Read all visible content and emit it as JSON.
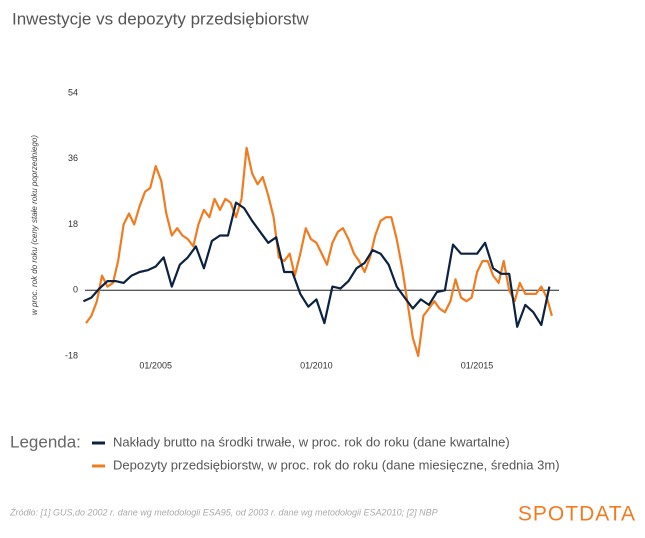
{
  "chart_data": {
    "type": "line",
    "title": "Inwestycje vs depozyty przedsiębiorstw",
    "y_label": "w proc. rok do roku (ceny stałe roku poprzedniego)",
    "legend_title": "Legenda:",
    "source": "Źródło: [1] GUS,do 2002 r. dane wg metodologii ESA95, od 2003 r. dane wg metodologii ESA2010; [2] NBP",
    "logo": "SPOTDATA",
    "xlim": [
      2002.8,
      2017.55
    ],
    "xticks": [
      {
        "value": 2005,
        "label": "01/2005"
      },
      {
        "value": 2010,
        "label": "01/2010"
      },
      {
        "value": 2015,
        "label": "01/2015"
      }
    ],
    "ylim": [
      -18,
      54
    ],
    "yticks": [
      -18,
      0,
      18,
      36,
      54
    ],
    "series": [
      {
        "name": "Nakłady brutto na środki trwałe, w proc. rok do roku (dane kwartalne)",
        "color": "#0d2240",
        "x": [
          2002.75,
          2003,
          2003.25,
          2003.5,
          2003.75,
          2004,
          2004.25,
          2004.5,
          2004.75,
          2005,
          2005.25,
          2005.5,
          2005.75,
          2006,
          2006.25,
          2006.5,
          2006.75,
          2007,
          2007.25,
          2007.5,
          2007.75,
          2008,
          2008.25,
          2008.5,
          2008.75,
          2009,
          2009.25,
          2009.5,
          2009.75,
          2010,
          2010.25,
          2010.5,
          2010.75,
          2011,
          2011.25,
          2011.5,
          2011.75,
          2012,
          2012.25,
          2012.5,
          2012.75,
          2013,
          2013.25,
          2013.5,
          2013.75,
          2014,
          2014.25,
          2014.5,
          2014.75,
          2015,
          2015.25,
          2015.5,
          2015.75,
          2016,
          2016.25,
          2016.5,
          2016.75,
          2017,
          2017.25
        ],
        "values": [
          -3,
          -2,
          0.5,
          2.5,
          2.5,
          2,
          4,
          5,
          5.5,
          6.5,
          9,
          1,
          7,
          9,
          12,
          6,
          13.5,
          15,
          15,
          24,
          22.5,
          19,
          16,
          13,
          14.5,
          5,
          5,
          -1,
          -4.5,
          -2.5,
          -9,
          1,
          0.5,
          2.5,
          6,
          7.5,
          11,
          10,
          7,
          1,
          -2,
          -5,
          -2.5,
          -4,
          -0.5,
          0,
          12.5,
          10,
          10,
          10,
          13,
          6,
          4.5,
          4.5,
          -10,
          -4,
          -6,
          -9.5,
          1
        ]
      },
      {
        "name": "Depozyty przedsiębiorstw, w proc. rok do roku (dane miesięczne, średnia 3m)",
        "color": "#f07c22",
        "x": [
          2002.83,
          2003,
          2003.17,
          2003.33,
          2003.5,
          2003.67,
          2003.83,
          2004,
          2004.17,
          2004.33,
          2004.5,
          2004.67,
          2004.83,
          2005,
          2005.17,
          2005.33,
          2005.5,
          2005.67,
          2005.83,
          2006,
          2006.17,
          2006.33,
          2006.5,
          2006.67,
          2006.83,
          2007,
          2007.17,
          2007.33,
          2007.5,
          2007.67,
          2007.83,
          2008,
          2008.17,
          2008.33,
          2008.5,
          2008.67,
          2008.83,
          2009,
          2009.17,
          2009.33,
          2009.5,
          2009.67,
          2009.83,
          2010,
          2010.17,
          2010.33,
          2010.5,
          2010.67,
          2010.83,
          2011,
          2011.17,
          2011.33,
          2011.5,
          2011.67,
          2011.83,
          2012,
          2012.17,
          2012.33,
          2012.5,
          2012.67,
          2012.83,
          2013,
          2013.17,
          2013.33,
          2013.5,
          2013.67,
          2013.83,
          2014,
          2014.17,
          2014.33,
          2014.5,
          2014.67,
          2014.83,
          2015,
          2015.17,
          2015.33,
          2015.5,
          2015.67,
          2015.83,
          2016,
          2016.17,
          2016.33,
          2016.5,
          2016.67,
          2016.83,
          2017,
          2017.17,
          2017.33
        ],
        "values": [
          -9,
          -7,
          -3,
          4,
          1,
          2,
          8,
          18,
          21,
          18,
          23,
          27,
          28,
          34,
          30,
          21,
          15,
          17,
          15,
          14,
          12,
          18,
          22,
          20,
          25,
          22,
          25,
          24,
          20,
          25,
          39,
          32,
          29,
          31,
          26,
          20,
          9,
          8,
          10,
          4,
          10,
          17,
          14,
          13,
          10,
          7,
          13,
          16,
          17,
          14,
          10,
          8,
          5,
          9,
          15,
          19,
          20,
          20,
          14,
          6,
          -3,
          -13,
          -18,
          -7,
          -5,
          -3,
          -5,
          -6,
          -3,
          3,
          -2,
          -3,
          -2,
          5,
          8,
          8,
          4,
          2,
          8,
          0,
          -3,
          2,
          -1,
          -1,
          -1,
          1,
          -2,
          -7
        ]
      }
    ]
  }
}
